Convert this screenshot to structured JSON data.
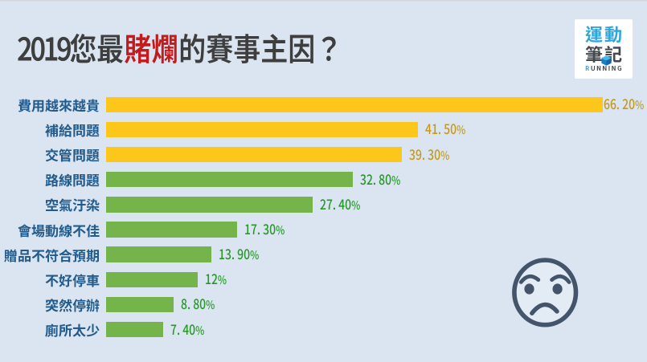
{
  "page": {
    "background": "#DAE5F1",
    "top_strip_color": "#D6D8DA"
  },
  "title": {
    "parts": [
      {
        "text": "2019",
        "color": "#3E3E3E"
      },
      {
        "text": "您最",
        "color": "#3E3E3E"
      },
      {
        "text": "賭爛",
        "color": "#C11B1B"
      },
      {
        "text": "的賽事主因？",
        "color": "#3E3E3E"
      }
    ]
  },
  "logo": {
    "line1": "運動",
    "line2": "筆記",
    "wordmark_first": "R",
    "wordmark_rest": "UNNING",
    "blue": "#2BA7E0",
    "dark": "#45494E",
    "cube_icon": "blue-3d-cube"
  },
  "chart_data": {
    "type": "bar",
    "orientation": "horizontal",
    "title": "2019您最賭爛的賽事主因？",
    "categories": [
      "費用越來越貴",
      "補給問題",
      "交管問題",
      "路線問題",
      "空氣汙染",
      "會場動線不佳",
      "贈品不符合預期",
      "不好停車",
      "突然停辦",
      "廁所太少"
    ],
    "values": [
      66.2,
      41.5,
      39.3,
      32.8,
      27.4,
      17.3,
      13.9,
      12,
      8.8,
      7.4
    ],
    "value_labels": [
      "66. 20%",
      "41. 50%",
      "39. 30%",
      "32. 80%",
      "27. 40%",
      "17. 30%",
      "13. 90%",
      "12%",
      "8. 80%",
      "7. 40%"
    ],
    "bar_color_groups": [
      "yellow",
      "yellow",
      "yellow",
      "green",
      "green",
      "green",
      "green",
      "green",
      "green",
      "green"
    ],
    "colors": {
      "yellow_bar": "#FDC61A",
      "green_bar": "#75B44A",
      "yellow_value_label": "#C7991B",
      "green_value_label": "#279727",
      "category_label": "#235C8C"
    },
    "xlim": [
      0,
      66.2
    ],
    "grid": false,
    "legend": false,
    "value_label_position": "outside-end"
  },
  "emoji": {
    "icon": "angry-face",
    "color": "#44546A"
  }
}
